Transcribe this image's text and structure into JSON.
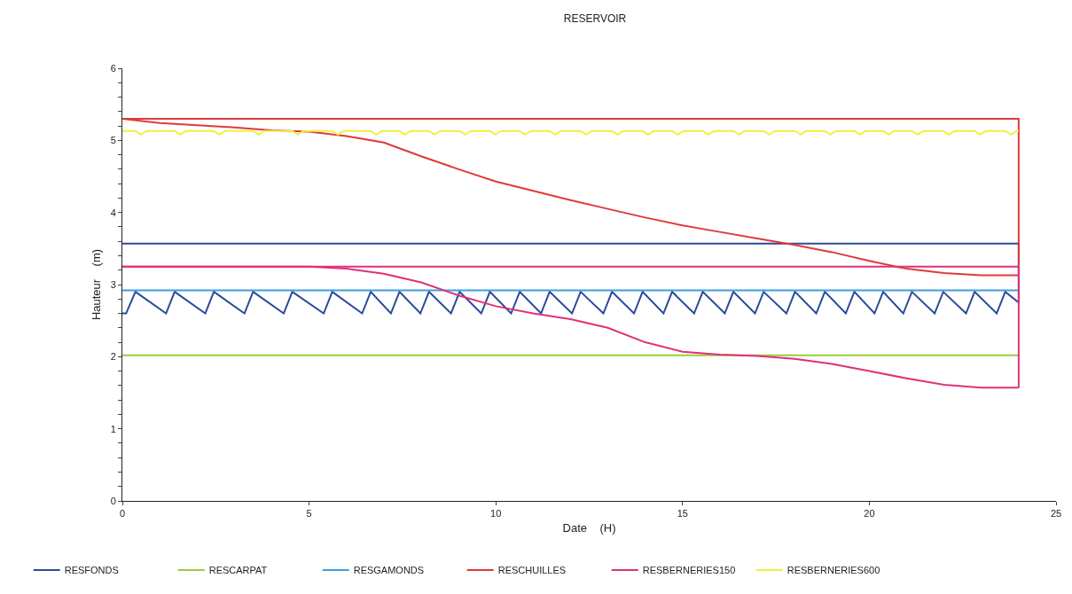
{
  "chart_data": {
    "type": "line",
    "title": "RESERVOIR",
    "xlabel": "Date    (H)",
    "ylabel": "Hauteur    (m)",
    "xlim": [
      0,
      25
    ],
    "xticks": [
      0,
      5,
      10,
      15,
      20,
      25
    ],
    "ylim": [
      0,
      6
    ],
    "yticks": [
      0,
      {
        "value": 0.2,
        "label": null
      },
      {
        "value": 0.4,
        "label": null
      },
      {
        "value": 0.6,
        "label": null
      },
      {
        "value": 0.8,
        "label": null
      },
      1,
      {
        "value": 1.2,
        "label": null
      },
      {
        "value": 1.4,
        "label": null
      },
      {
        "value": 1.6,
        "label": null
      },
      {
        "value": 1.8,
        "label": null
      },
      2,
      {
        "value": 2.2,
        "label": null
      },
      {
        "value": 2.4,
        "label": null
      },
      {
        "value": 2.6,
        "label": null
      },
      {
        "value": 2.8,
        "label": null
      },
      3,
      {
        "value": 3.2,
        "label": null
      },
      {
        "value": 3.4,
        "label": null
      },
      {
        "value": 3.6,
        "label": null
      },
      {
        "value": 3.8,
        "label": null
      },
      4,
      {
        "value": 4.2,
        "label": null
      },
      {
        "value": 4.4,
        "label": null
      },
      {
        "value": 4.6,
        "label": null
      },
      {
        "value": 4.8,
        "label": null
      },
      5,
      {
        "value": 5.2,
        "label": null
      },
      {
        "value": 5.4,
        "label": null
      },
      {
        "value": 5.6,
        "label": null
      },
      {
        "value": 5.8,
        "label": null
      },
      6
    ],
    "legend": "bottom",
    "marker": "none",
    "line_style": "solid",
    "series": [
      {
        "name": "RESFONDS",
        "color": "#2a4a9a",
        "x": [
          0,
          0.1,
          0.35,
          1.17,
          1.4,
          2.22,
          2.45,
          3.27,
          3.5,
          4.32,
          4.55,
          5.39,
          5.62,
          6.42,
          6.65,
          7.19,
          7.42,
          7.98,
          8.21,
          8.8,
          9.03,
          9.61,
          9.84,
          10.41,
          10.64,
          11.21,
          11.44,
          12.04,
          12.27,
          12.88,
          13.11,
          13.7,
          13.93,
          14.49,
          14.72,
          15.31,
          15.54,
          16.13,
          16.36,
          16.94,
          17.17,
          17.78,
          18.01,
          18.58,
          18.81,
          19.37,
          19.6,
          20.14,
          20.37,
          20.91,
          21.14,
          21.75,
          21.98,
          22.59,
          22.82,
          23.41,
          23.64,
          24
        ],
        "values": [
          2.6,
          2.6,
          2.9,
          2.6,
          2.9,
          2.6,
          2.9,
          2.6,
          2.9,
          2.6,
          2.9,
          2.6,
          2.9,
          2.6,
          2.9,
          2.6,
          2.9,
          2.6,
          2.9,
          2.6,
          2.9,
          2.6,
          2.9,
          2.6,
          2.9,
          2.6,
          2.9,
          2.6,
          2.9,
          2.6,
          2.9,
          2.6,
          2.9,
          2.6,
          2.9,
          2.6,
          2.9,
          2.6,
          2.9,
          2.6,
          2.9,
          2.6,
          2.9,
          2.6,
          2.9,
          2.6,
          2.9,
          2.6,
          2.9,
          2.6,
          2.9,
          2.6,
          2.9,
          2.6,
          2.9,
          2.6,
          2.9,
          2.75
        ]
      },
      {
        "color": "#2a4a9a",
        "x": [
          24,
          24,
          0
        ],
        "values": [
          2.75,
          3.57,
          3.57
        ]
      },
      {
        "name": "RESCARPAT",
        "color": "#9ccc3c",
        "x": [
          0,
          24
        ],
        "values": [
          2.02,
          2.02
        ]
      },
      {
        "name": "RESGAMONDS",
        "color": "#3aa0e0",
        "x": [
          0,
          24
        ],
        "values": [
          2.92,
          2.92
        ]
      },
      {
        "name": "RESCHUILLES",
        "color": "#e03a3a",
        "x": [
          0,
          1,
          2,
          3,
          4,
          5,
          6,
          7,
          8,
          9,
          10,
          11,
          12,
          13,
          14,
          15,
          16,
          17,
          18,
          19,
          20,
          21,
          22,
          23,
          24
        ],
        "values": [
          5.3,
          5.24,
          5.21,
          5.18,
          5.14,
          5.12,
          5.06,
          4.97,
          4.78,
          4.6,
          4.43,
          4.3,
          4.17,
          4.05,
          3.93,
          3.82,
          3.73,
          3.64,
          3.55,
          3.45,
          3.33,
          3.22,
          3.16,
          3.13,
          3.13
        ]
      },
      {
        "color": "#e03a3a",
        "x": [
          24,
          24,
          0
        ],
        "values": [
          3.13,
          5.3,
          5.3
        ]
      },
      {
        "name": "RESBERNERIES150",
        "color": "#e0307a",
        "x": [
          0,
          1,
          2,
          3,
          4,
          5,
          6,
          7,
          8,
          9,
          10,
          11,
          12,
          13,
          14,
          15,
          16,
          17,
          18,
          19,
          20,
          21,
          22,
          23,
          24
        ],
        "values": [
          3.25,
          3.25,
          3.25,
          3.25,
          3.25,
          3.25,
          3.22,
          3.15,
          3.03,
          2.85,
          2.7,
          2.6,
          2.52,
          2.4,
          2.2,
          2.07,
          2.03,
          2.01,
          1.97,
          1.9,
          1.8,
          1.7,
          1.61,
          1.57,
          1.57
        ]
      },
      {
        "color": "#e0307a",
        "x": [
          24,
          24,
          0
        ],
        "values": [
          1.57,
          3.25,
          3.25
        ]
      },
      {
        "name": "RESBERNERIES600",
        "color": "#f0f040",
        "x": [
          0,
          0.35,
          0.5,
          0.65,
          1.4,
          1.55,
          1.7,
          2.45,
          2.6,
          2.75,
          3.5,
          3.65,
          3.8,
          4.55,
          4.7,
          4.85,
          5.62,
          5.77,
          5.92,
          6.65,
          6.8,
          6.95,
          7.42,
          7.57,
          7.72,
          8.21,
          8.36,
          8.51,
          9.03,
          9.18,
          9.33,
          9.84,
          9.99,
          10.14,
          10.64,
          10.79,
          10.94,
          11.44,
          11.59,
          11.74,
          12.27,
          12.42,
          12.57,
          13.11,
          13.26,
          13.41,
          13.93,
          14.08,
          14.23,
          14.72,
          14.87,
          15.02,
          15.54,
          15.69,
          15.84,
          16.36,
          16.51,
          16.66,
          17.17,
          17.32,
          17.47,
          18.01,
          18.16,
          18.31,
          18.81,
          18.96,
          19.11,
          19.6,
          19.75,
          19.9,
          20.37,
          20.52,
          20.67,
          21.14,
          21.29,
          21.44,
          21.98,
          22.13,
          22.28,
          22.82,
          22.97,
          23.12,
          23.64,
          23.79,
          23.94,
          24
        ],
        "values": [
          5.13,
          5.13,
          5.08,
          5.13,
          5.13,
          5.08,
          5.13,
          5.13,
          5.08,
          5.13,
          5.13,
          5.08,
          5.13,
          5.13,
          5.08,
          5.13,
          5.13,
          5.08,
          5.13,
          5.13,
          5.08,
          5.13,
          5.13,
          5.08,
          5.13,
          5.13,
          5.08,
          5.13,
          5.13,
          5.08,
          5.13,
          5.13,
          5.08,
          5.13,
          5.13,
          5.08,
          5.13,
          5.13,
          5.08,
          5.13,
          5.13,
          5.08,
          5.13,
          5.13,
          5.08,
          5.13,
          5.13,
          5.08,
          5.13,
          5.13,
          5.08,
          5.13,
          5.13,
          5.08,
          5.13,
          5.13,
          5.08,
          5.13,
          5.13,
          5.08,
          5.13,
          5.13,
          5.08,
          5.13,
          5.13,
          5.08,
          5.13,
          5.13,
          5.08,
          5.13,
          5.13,
          5.08,
          5.13,
          5.13,
          5.08,
          5.13,
          5.13,
          5.08,
          5.13,
          5.13,
          5.08,
          5.13,
          5.13,
          5.08,
          5.13,
          5.13
        ]
      }
    ]
  }
}
